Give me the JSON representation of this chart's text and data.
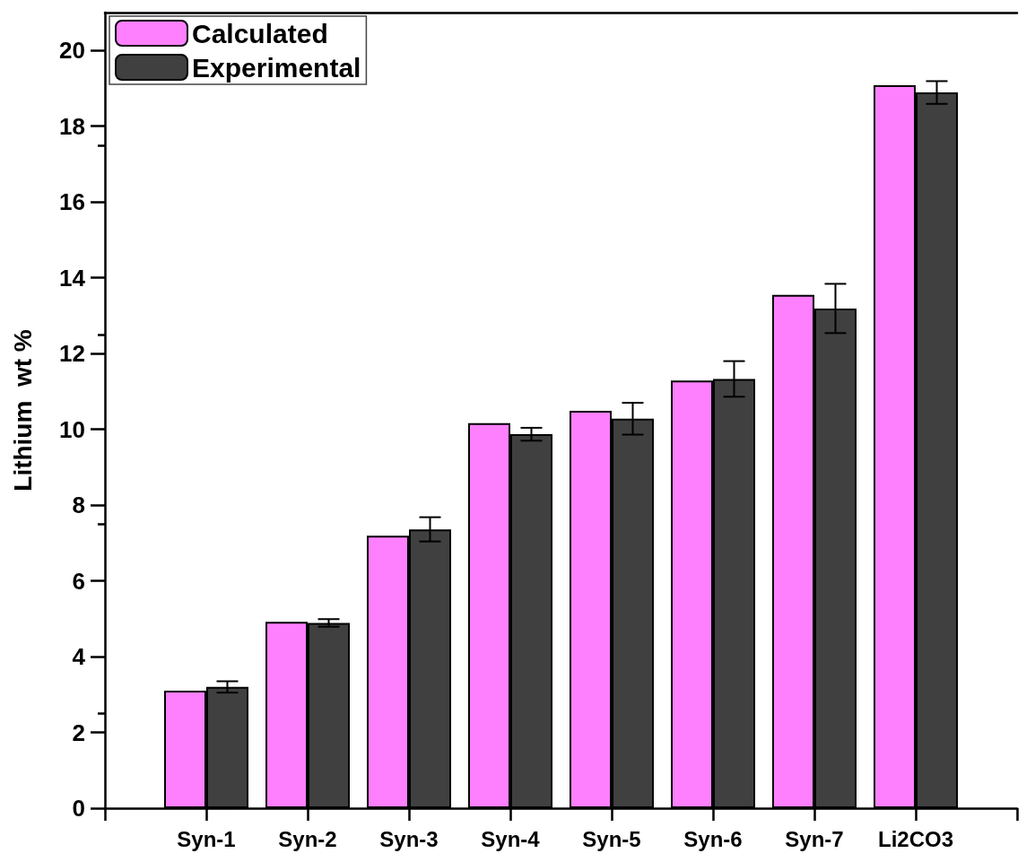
{
  "chart_data": {
    "type": "bar",
    "ylabel": "Lithium  wt %",
    "categories": [
      null,
      "Syn-1",
      "Syn-2",
      "Syn-3",
      "Syn-4",
      "Syn-5",
      "Syn-6",
      "Syn-7",
      "Li2CO3",
      null
    ],
    "series": [
      {
        "name": "Calculated",
        "color": "#ff80ff",
        "values": [
          null,
          3.1,
          4.92,
          7.19,
          10.16,
          10.49,
          11.29,
          13.55,
          19.08,
          null
        ]
      },
      {
        "name": "Experimental",
        "color": "#404040",
        "values": [
          null,
          3.2,
          4.89,
          7.36,
          9.87,
          10.28,
          11.33,
          13.19,
          18.89,
          null
        ],
        "errors": [
          null,
          0.15,
          0.1,
          0.32,
          0.17,
          0.42,
          0.47,
          0.65,
          0.3,
          null
        ]
      }
    ],
    "ylim": [
      0,
      21
    ],
    "yticks": [
      0,
      2,
      4,
      6,
      8,
      10,
      12,
      14,
      16,
      18,
      20
    ],
    "grid": false,
    "legend": "top left"
  }
}
